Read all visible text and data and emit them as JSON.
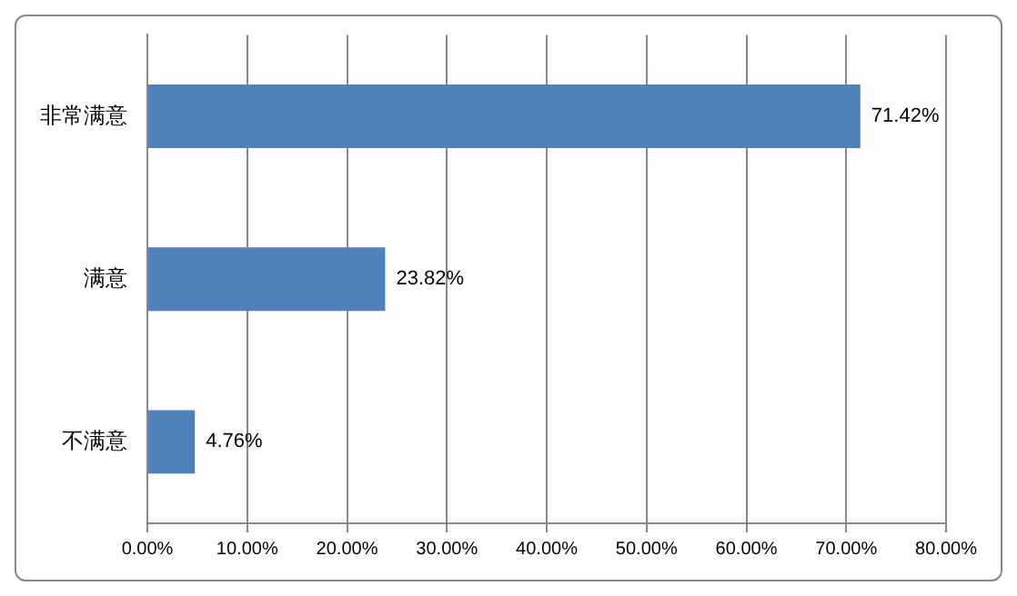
{
  "chart_data": {
    "type": "bar",
    "orientation": "horizontal",
    "categories": [
      "非常满意",
      "满意",
      "不满意"
    ],
    "values": [
      71.42,
      23.82,
      4.76
    ],
    "color": "#4f81bd",
    "value_labels": [
      "71.42%",
      "23.82%",
      "4.76%"
    ],
    "xlim": [
      0,
      80
    ],
    "xticks": [
      {
        "value": 0,
        "label": "0.00%"
      },
      {
        "value": 10,
        "label": "10.00%"
      },
      {
        "value": 20,
        "label": "20.00%"
      },
      {
        "value": 30,
        "label": "30.00%"
      },
      {
        "value": 40,
        "label": "40.00%"
      },
      {
        "value": 50,
        "label": "50.00%"
      },
      {
        "value": 60,
        "label": "60.00%"
      },
      {
        "value": 70,
        "label": "70.00%"
      },
      {
        "value": 80,
        "label": "80.00%"
      }
    ],
    "grid": "x",
    "legend": false
  }
}
